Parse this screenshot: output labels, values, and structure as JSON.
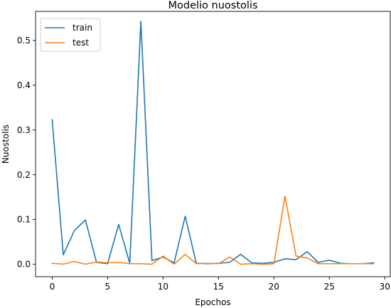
{
  "chart_data": {
    "type": "line",
    "title": "Modelio nuostolis",
    "xlabel": "Epochos",
    "ylabel": "Nuostolis",
    "xlim": [
      -1.5,
      30.5
    ],
    "ylim": [
      -0.028,
      0.565
    ],
    "xticks": [
      0,
      5,
      10,
      15,
      20,
      25,
      30
    ],
    "yticks": [
      0.0,
      0.1,
      0.2,
      0.3,
      0.4,
      0.5
    ],
    "xtick_labels": [
      "0",
      "5",
      "10",
      "15",
      "20",
      "25",
      "30"
    ],
    "ytick_labels": [
      "0.0",
      "0.1",
      "0.2",
      "0.3",
      "0.4",
      "0.5"
    ],
    "grid": false,
    "legend_position": "upper-left",
    "x": [
      0,
      1,
      2,
      3,
      4,
      5,
      6,
      7,
      8,
      9,
      10,
      11,
      12,
      13,
      14,
      15,
      16,
      17,
      18,
      19,
      20,
      21,
      22,
      23,
      24,
      25,
      26,
      27,
      28,
      29
    ],
    "series": [
      {
        "name": "train",
        "color": "#1f77b4",
        "values": [
          0.323,
          0.021,
          0.075,
          0.099,
          0.004,
          0.001,
          0.089,
          0.002,
          0.543,
          0.008,
          0.016,
          0.003,
          0.107,
          0.002,
          0.001,
          0.002,
          0.004,
          0.022,
          0.003,
          0.002,
          0.004,
          0.012,
          0.01,
          0.028,
          0.004,
          0.009,
          0.002,
          0.001,
          0.001,
          0.003
        ]
      },
      {
        "name": "test",
        "color": "#ff7f0e",
        "values": [
          0.002,
          0.0,
          0.006,
          0.0,
          0.005,
          0.003,
          0.004,
          0.001,
          0.001,
          0.0,
          0.018,
          0.0,
          0.022,
          0.001,
          0.002,
          0.001,
          0.016,
          0.0,
          0.001,
          0.0,
          0.001,
          0.152,
          0.018,
          0.014,
          0.001,
          0.001,
          0.001,
          0.001,
          0.001,
          0.001
        ]
      }
    ]
  }
}
